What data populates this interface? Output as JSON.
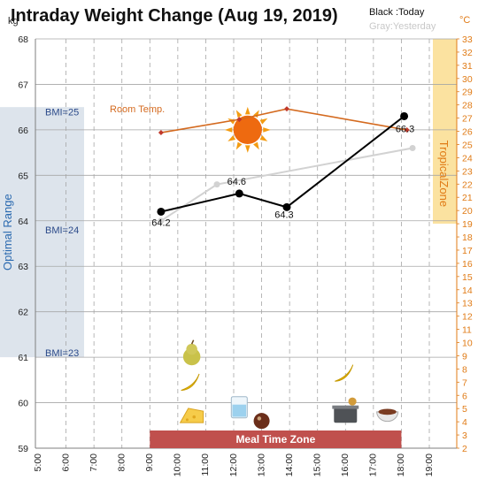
{
  "chart_data": {
    "type": "line",
    "title": "Intraday Weight Change (Aug 19, 2019)",
    "legend": {
      "today": "Black :Today",
      "yesterday": "Gray:Yesterday",
      "placement": "top-right"
    },
    "y_left": {
      "unit": "kg",
      "range": [
        59,
        68
      ],
      "ticks": [
        "68",
        "67",
        "66",
        "65",
        "64",
        "63",
        "62",
        "61",
        "60",
        "59"
      ]
    },
    "y_right": {
      "unit": "°C",
      "range": [
        2,
        33
      ],
      "ticks": [
        "33",
        "32",
        "31",
        "30",
        "29",
        "28",
        "27",
        "26",
        "25",
        "24",
        "23",
        "22",
        "21",
        "20",
        "19",
        "18",
        "17",
        "16",
        "15",
        "14",
        "13",
        "12",
        "11",
        "10",
        "9",
        "8",
        "7",
        "6",
        "5",
        "4",
        "3",
        "2"
      ]
    },
    "x": {
      "range_hours": [
        5,
        19
      ],
      "ticks": [
        "5:00",
        "6:00",
        "7:00",
        "8:00",
        "9:00",
        "10:00",
        "11:00",
        "12:00",
        "13:00",
        "14:00",
        "15:00",
        "16:00",
        "17:00",
        "18:00",
        "19:00"
      ]
    },
    "grid": true,
    "series": [
      {
        "name": "Today",
        "color": "#000000",
        "points": [
          {
            "x": 9.4,
            "y": 64.2,
            "label": "64.2"
          },
          {
            "x": 12.2,
            "y": 64.6,
            "label": "64.6"
          },
          {
            "x": 13.9,
            "y": 64.3,
            "label": "64.3"
          },
          {
            "x": 18.1,
            "y": 66.3,
            "label": "66.3"
          }
        ]
      },
      {
        "name": "Yesterday",
        "color": "#d2d2d2",
        "points": [
          {
            "x": 9.4,
            "y": 64.0
          },
          {
            "x": 11.4,
            "y": 64.8
          },
          {
            "x": 18.4,
            "y": 65.6
          }
        ]
      },
      {
        "name": "Room Temp.",
        "color": "#d46a1f",
        "axis": "right",
        "points": [
          {
            "x": 9.4,
            "y": 25.9
          },
          {
            "x": 12.2,
            "y": 26.9
          },
          {
            "x": 13.9,
            "y": 27.7
          },
          {
            "x": 18.2,
            "y": 26.1
          }
        ]
      }
    ],
    "bands": {
      "optimal": {
        "label": "Optimal Range",
        "range": [
          61,
          66.5
        ],
        "color": "#dde4ec"
      },
      "tropical": {
        "label": "TropicalZone",
        "range_temp": [
          19,
          33
        ],
        "color": "#fbe2a0"
      },
      "meal": {
        "label": "Meal Time Zone",
        "range_hours": [
          9,
          18
        ],
        "color": "#c0504d"
      }
    },
    "bmi_labels": [
      {
        "label": "BMI=25",
        "y": 66.4
      },
      {
        "label": "BMI=24",
        "y": 63.8
      },
      {
        "label": "BMI=23",
        "y": 61.1
      }
    ],
    "series_labels": {
      "room_temp": "Room Temp."
    },
    "icons": [
      {
        "name": "sun-icon",
        "x": 12.5,
        "y": 66.0,
        "size": 26
      },
      {
        "name": "pear-icon",
        "x": 10.5,
        "y": 61.1,
        "size": 13
      },
      {
        "name": "banana-icon",
        "x": 10.5,
        "y": 60.4,
        "size": 12
      },
      {
        "name": "cheese-icon",
        "x": 10.5,
        "y": 59.7,
        "size": 13
      },
      {
        "name": "water-glass-icon",
        "x": 12.2,
        "y": 59.9,
        "size": 12
      },
      {
        "name": "chocolate-icon",
        "x": 13.0,
        "y": 59.6,
        "size": 9
      },
      {
        "name": "banana-icon",
        "x": 16.0,
        "y": 60.6,
        "size": 12
      },
      {
        "name": "cooking-pot-icon",
        "x": 16.0,
        "y": 59.8,
        "size": 13
      },
      {
        "name": "soup-bowl-icon",
        "x": 17.5,
        "y": 59.8,
        "size": 12
      }
    ]
  }
}
